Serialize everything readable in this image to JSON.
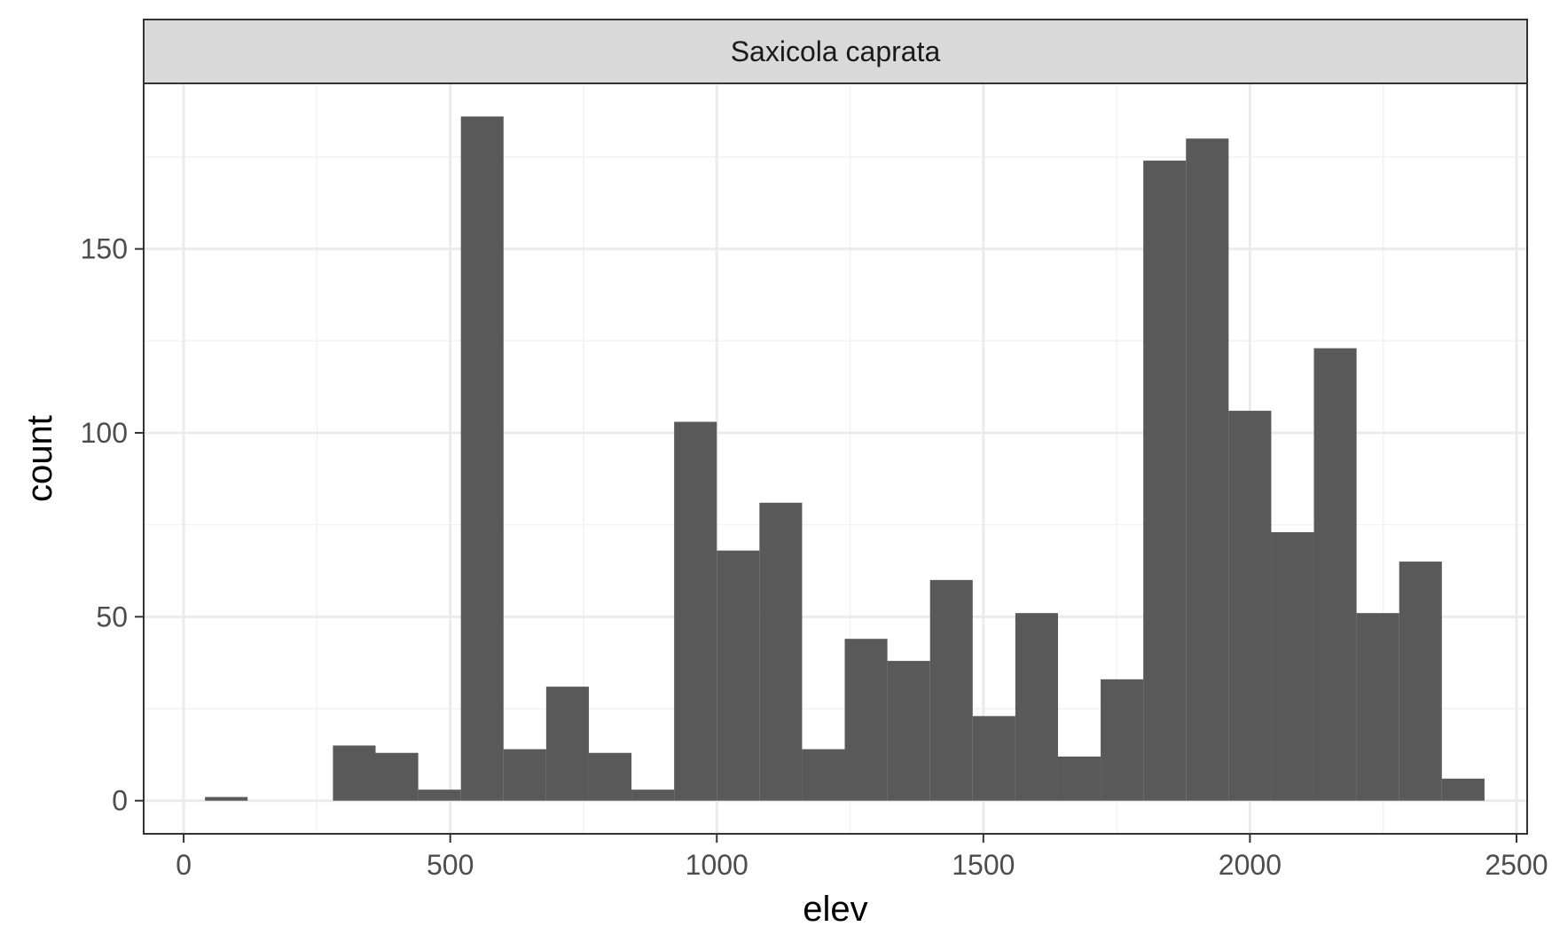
{
  "chart_data": {
    "type": "bar",
    "facet_label": "Saxicola caprata",
    "xlabel": "elev",
    "ylabel": "count",
    "xlim": [
      -75,
      2520
    ],
    "ylim": [
      -9,
      195
    ],
    "x_ticks": [
      0,
      500,
      1000,
      1500,
      2000,
      2500
    ],
    "y_ticks": [
      0,
      50,
      100,
      150
    ],
    "grid": true,
    "bin_width": 80,
    "bins": [
      {
        "start": 40,
        "end": 120,
        "count": 1
      },
      {
        "start": 280,
        "end": 360,
        "count": 15
      },
      {
        "start": 360,
        "end": 440,
        "count": 13
      },
      {
        "start": 440,
        "end": 520,
        "count": 3
      },
      {
        "start": 520,
        "end": 600,
        "count": 186
      },
      {
        "start": 600,
        "end": 680,
        "count": 14
      },
      {
        "start": 680,
        "end": 760,
        "count": 31
      },
      {
        "start": 760,
        "end": 840,
        "count": 13
      },
      {
        "start": 840,
        "end": 920,
        "count": 3
      },
      {
        "start": 920,
        "end": 1000,
        "count": 103
      },
      {
        "start": 1000,
        "end": 1080,
        "count": 68
      },
      {
        "start": 1080,
        "end": 1160,
        "count": 81
      },
      {
        "start": 1160,
        "end": 1240,
        "count": 14
      },
      {
        "start": 1240,
        "end": 1320,
        "count": 44
      },
      {
        "start": 1320,
        "end": 1400,
        "count": 38
      },
      {
        "start": 1400,
        "end": 1480,
        "count": 60
      },
      {
        "start": 1480,
        "end": 1560,
        "count": 23
      },
      {
        "start": 1560,
        "end": 1640,
        "count": 51
      },
      {
        "start": 1640,
        "end": 1720,
        "count": 12
      },
      {
        "start": 1720,
        "end": 1800,
        "count": 33
      },
      {
        "start": 1800,
        "end": 1880,
        "count": 174
      },
      {
        "start": 1880,
        "end": 1960,
        "count": 180
      },
      {
        "start": 1960,
        "end": 2040,
        "count": 106
      },
      {
        "start": 2040,
        "end": 2120,
        "count": 73
      },
      {
        "start": 2120,
        "end": 2200,
        "count": 123
      },
      {
        "start": 2200,
        "end": 2280,
        "count": 51
      },
      {
        "start": 2280,
        "end": 2360,
        "count": 65
      },
      {
        "start": 2360,
        "end": 2440,
        "count": 6
      }
    ],
    "colors": {
      "bar": "#595959",
      "strip_fill": "#d9d9d9",
      "panel_border": "#333333",
      "grid_major": "#ebebeb",
      "grid_minor": "#f2f2f2",
      "tick_label": "#4d4d4d"
    }
  }
}
